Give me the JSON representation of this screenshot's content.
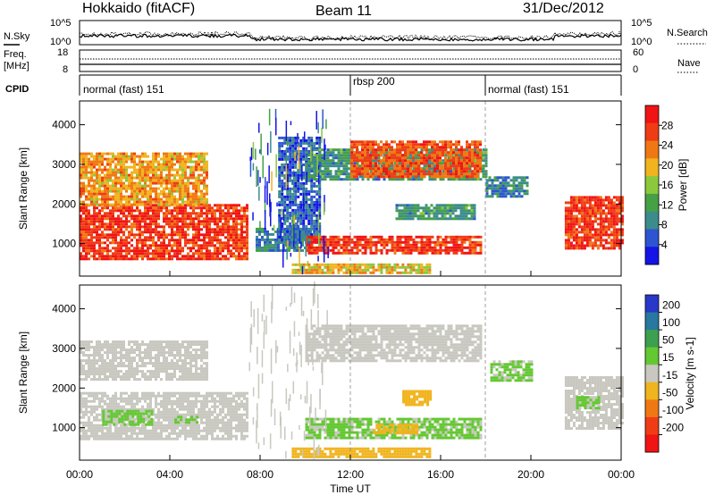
{
  "header": {
    "station": "Hokkaido (fitACF)",
    "beam": "Beam 11",
    "date": "31/Dec/2012"
  },
  "noise_panel": {
    "left_label": "N.Sky",
    "right_label": "N.Search",
    "y_ticks_left": [
      "10^5",
      "10^0"
    ],
    "y_ticks_right": [
      "10^5",
      "10^0"
    ]
  },
  "freq_panel": {
    "left_label_1": "Freq.",
    "left_label_2": "[MHz]",
    "y_ticks_left": [
      "18",
      "8"
    ],
    "y_ticks_right": [
      "60",
      "0"
    ],
    "right_label": "Nave"
  },
  "cpid_panel": {
    "label": "CPID",
    "segments": [
      {
        "text": "normal (fast) 151",
        "start_h": 0
      },
      {
        "text": "rbsp 200",
        "start_h": 12
      },
      {
        "text": "normal (fast) 151",
        "start_h": 18
      }
    ]
  },
  "x_axis": {
    "label": "Time UT",
    "ticks": [
      "00:00",
      "04:00",
      "08:00",
      "12:00",
      "16:00",
      "20:00",
      "00:00"
    ]
  },
  "chart_data": [
    {
      "type": "heatmap",
      "ylabel": "Slant Range [km]",
      "yticks": [
        "1000",
        "2000",
        "3000",
        "4000"
      ],
      "ylim": [
        180,
        4600
      ],
      "xlim_hours": [
        0,
        24
      ],
      "colorbar": {
        "label": "Power [dB]",
        "ticks": [
          "4",
          "8",
          "12",
          "16",
          "20",
          "24",
          "28"
        ],
        "range": [
          0,
          30
        ],
        "colors": [
          "#1414e6",
          "#2d55d2",
          "#3c8c8c",
          "#46a046",
          "#8cc83c",
          "#f0b41e",
          "#f07814",
          "#f03c14",
          "#f01414"
        ]
      },
      "regions": [
        {
          "t0": 0.0,
          "t1": 7.4,
          "r0": 600,
          "r1": 2000,
          "level": 26
        },
        {
          "t0": 0.0,
          "t1": 5.6,
          "r0": 2000,
          "r1": 3300,
          "level": 20
        },
        {
          "t0": 7.8,
          "t1": 10.2,
          "r0": 800,
          "r1": 1400,
          "level": 8
        },
        {
          "t0": 8.8,
          "t1": 10.6,
          "r0": 1000,
          "r1": 3700,
          "level": 6
        },
        {
          "t0": 9.4,
          "t1": 15.5,
          "r0": 250,
          "r1": 500,
          "level": 18
        },
        {
          "t0": 10.0,
          "t1": 18.0,
          "r0": 2600,
          "r1": 3400,
          "level": 10
        },
        {
          "t0": 12.0,
          "t1": 17.8,
          "r0": 2700,
          "r1": 3600,
          "level": 24
        },
        {
          "t0": 10.0,
          "t1": 17.8,
          "r0": 750,
          "r1": 1200,
          "level": 26
        },
        {
          "t0": 14.0,
          "t1": 17.5,
          "r0": 1600,
          "r1": 2000,
          "level": 10
        },
        {
          "t0": 18.0,
          "t1": 19.8,
          "r0": 2200,
          "r1": 2700,
          "level": 8
        },
        {
          "t0": 21.5,
          "t1": 24.0,
          "r0": 900,
          "r1": 2200,
          "level": 26
        }
      ]
    },
    {
      "type": "heatmap",
      "ylabel": "Slant Range [km]",
      "yticks": [
        "1000",
        "2000",
        "3000",
        "4000"
      ],
      "ylim": [
        180,
        4600
      ],
      "xlim_hours": [
        0,
        24
      ],
      "colorbar": {
        "label": "Velocity [m s-1]",
        "ticks": [
          "200",
          "100",
          "50",
          "15",
          "-15",
          "-50",
          "-100",
          "-200"
        ],
        "range": [
          -250,
          250
        ],
        "colors": [
          "#2838c8",
          "#2878a0",
          "#3ca050",
          "#64c832",
          "#c8c8c0",
          "#f0b41e",
          "#f07814",
          "#f03c14",
          "#f01414"
        ]
      },
      "regions": [
        {
          "t0": 0.0,
          "t1": 7.4,
          "r0": 700,
          "r1": 1900,
          "level": 0
        },
        {
          "t0": 1.0,
          "t1": 3.2,
          "r0": 1100,
          "r1": 1450,
          "level": 30
        },
        {
          "t0": 4.2,
          "t1": 5.2,
          "r0": 1100,
          "r1": 1300,
          "level": 30
        },
        {
          "t0": 0.0,
          "t1": 5.6,
          "r0": 2200,
          "r1": 3200,
          "level": 0
        },
        {
          "t0": 10.0,
          "t1": 17.8,
          "r0": 2700,
          "r1": 3600,
          "level": 0
        },
        {
          "t0": 10.0,
          "t1": 17.8,
          "r0": 750,
          "r1": 1250,
          "level": 30
        },
        {
          "t0": 13.0,
          "t1": 15.0,
          "r0": 850,
          "r1": 1100,
          "level": -40
        },
        {
          "t0": 14.3,
          "t1": 15.5,
          "r0": 1550,
          "r1": 1950,
          "level": -40
        },
        {
          "t0": 9.4,
          "t1": 15.5,
          "r0": 250,
          "r1": 500,
          "level": -40
        },
        {
          "t0": 18.2,
          "t1": 20.0,
          "r0": 2200,
          "r1": 2700,
          "level": 30
        },
        {
          "t0": 21.5,
          "t1": 24.0,
          "r0": 1000,
          "r1": 2300,
          "level": 0
        },
        {
          "t0": 22.0,
          "t1": 23.0,
          "r0": 1500,
          "r1": 1800,
          "level": 30
        }
      ]
    }
  ]
}
